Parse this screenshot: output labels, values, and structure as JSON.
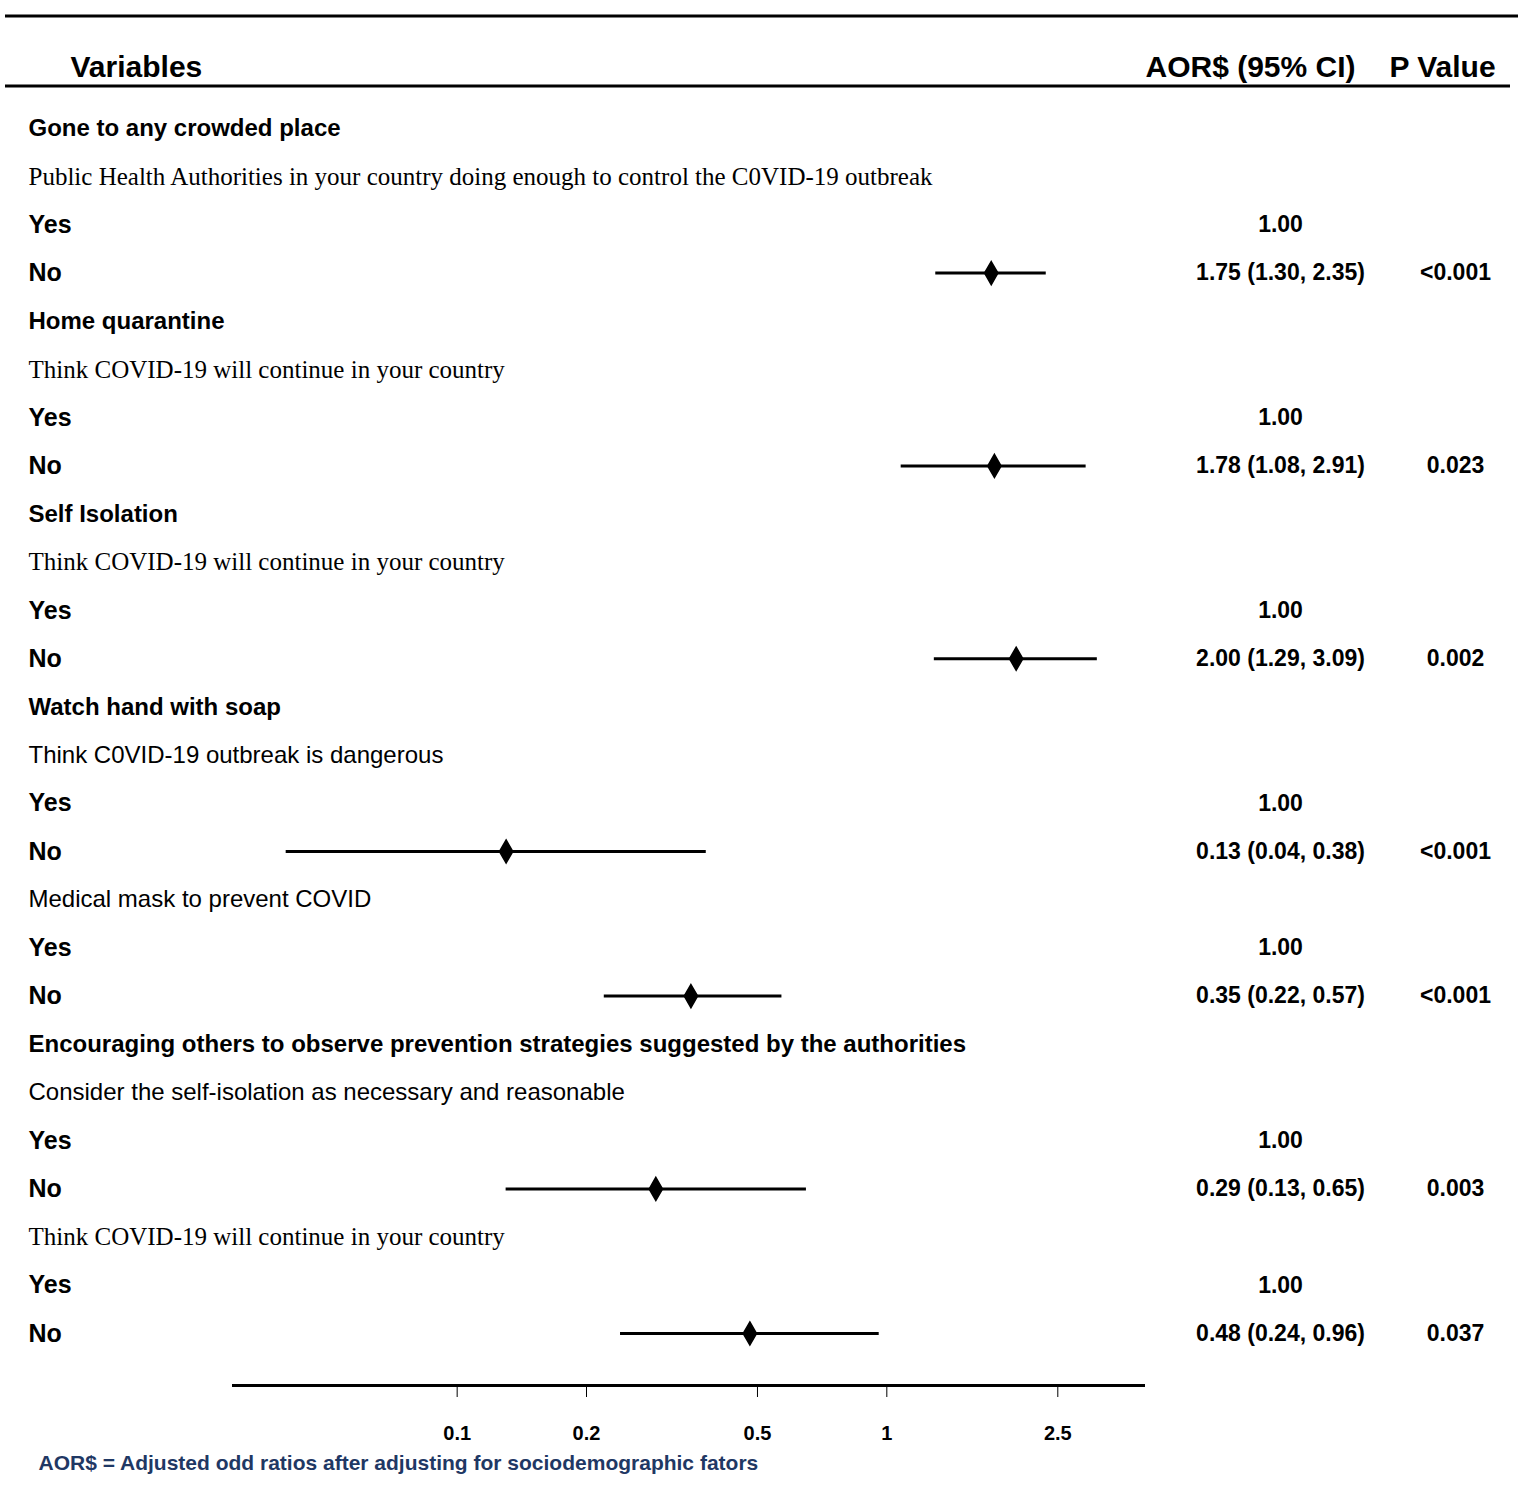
{
  "chart_data": {
    "type": "forest",
    "header": {
      "variables": "Variables",
      "estimate": "AOR$ (95% CI)",
      "p": "P Value"
    },
    "footnote": "AOR$ = Adjusted odd ratios after adjusting for sociodemographic fators",
    "log": "x",
    "xlim": [
      0.03,
      4
    ],
    "xticks": [
      0.1,
      0.2,
      0.5,
      1,
      2.5
    ],
    "color": "#000000",
    "marker": "diamond",
    "groups": [
      {
        "outcome": "Gone to any crowded place",
        "variables": [
          {
            "name": "Public Health Authorities in your country doing enough to control the C0VID-19 outbreak",
            "levels": [
              {
                "label": "Yes",
                "value": 1,
                "value_label": "1.00"
              },
              {
                "label": "No",
                "value": 1.75,
                "lower": 1.3,
                "upper": 2.35,
                "value_label": "1.75 (1.30, 2.35)",
                "p": "<0.001"
              }
            ]
          }
        ]
      },
      {
        "outcome": "Home quarantine",
        "variables": [
          {
            "name": "Think COVID-19 will continue in your country",
            "levels": [
              {
                "label": "Yes",
                "value": 1,
                "value_label": "1.00"
              },
              {
                "label": "No",
                "value": 1.78,
                "lower": 1.08,
                "upper": 2.91,
                "value_label": "1.78 (1.08, 2.91)",
                "p": "0.023"
              }
            ]
          }
        ]
      },
      {
        "outcome": "Self Isolation",
        "variables": [
          {
            "name": "Think COVID-19 will continue in your country",
            "levels": [
              {
                "label": "Yes",
                "value": 1,
                "value_label": "1.00"
              },
              {
                "label": "No",
                "value": 2.0,
                "lower": 1.29,
                "upper": 3.09,
                "value_label": "2.00 (1.29, 3.09)",
                "p": "0.002"
              }
            ]
          }
        ]
      },
      {
        "outcome": "Watch hand with soap",
        "variables": [
          {
            "name": "Think C0VID-19 outbreak is dangerous",
            "levels": [
              {
                "label": "Yes",
                "value": 1,
                "value_label": "1.00"
              },
              {
                "label": "No",
                "value": 0.13,
                "lower": 0.04,
                "upper": 0.38,
                "value_label": "0.13 (0.04, 0.38)",
                "p": "<0.001"
              }
            ]
          },
          {
            "name": "Medical mask to prevent COVID",
            "levels": [
              {
                "label": "Yes",
                "value": 1,
                "value_label": "1.00"
              },
              {
                "label": "No",
                "value": 0.35,
                "lower": 0.22,
                "upper": 0.57,
                "value_label": "0.35 (0.22, 0.57)",
                "p": "<0.001"
              }
            ]
          }
        ]
      },
      {
        "outcome": "Encouraging others to observe prevention strategies suggested by the authorities",
        "variables": [
          {
            "name": "Consider the self-isolation as necessary and reasonable",
            "levels": [
              {
                "label": "Yes",
                "value": 1,
                "value_label": "1.00"
              },
              {
                "label": "No",
                "value": 0.29,
                "lower": 0.13,
                "upper": 0.65,
                "value_label": "0.29 (0.13, 0.65)",
                "p": "0.003"
              }
            ]
          },
          {
            "name": "Think COVID-19 will continue in your country",
            "levels": [
              {
                "label": "Yes",
                "value": 1,
                "value_label": "1.00"
              },
              {
                "label": "No",
                "value": 0.48,
                "lower": 0.24,
                "upper": 0.96,
                "value_label": "0.48 (0.24, 0.96)",
                "p": "0.037"
              }
            ]
          }
        ]
      }
    ]
  }
}
